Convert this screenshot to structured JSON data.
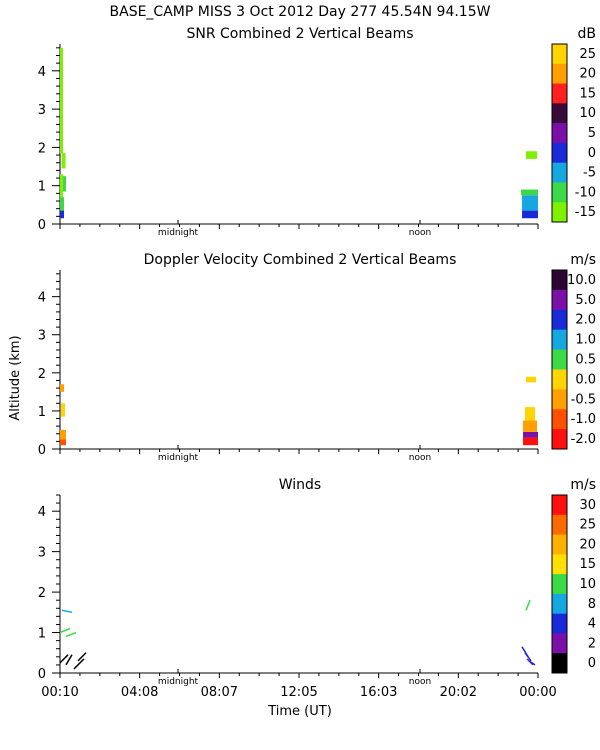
{
  "header": "BASE_CAMP MISS    3 Oct 2012 Day 277 45.54N   94.15W",
  "ylabel": "Altitude (km)",
  "xlabel": "Time (UT)",
  "x_ticks": [
    "00:10",
    "04:08",
    "08:07",
    "12:05",
    "16:03",
    "20:02",
    "00:00"
  ],
  "time_markers": [
    "midnight",
    "noon"
  ],
  "chart_data": [
    {
      "type": "heatmap",
      "title": "SNR Combined 2 Vertical Beams",
      "ylabel": "Altitude (km)",
      "xlabel": "Time (UT)",
      "ylim": [
        0,
        4.7
      ],
      "y_ticks": [
        "0",
        "1",
        "2",
        "3",
        "4"
      ],
      "colorbar": {
        "unit": "dB",
        "labels": [
          "25",
          "20",
          "15",
          "10",
          "5",
          "0",
          "-5",
          "-10",
          "-15"
        ],
        "colors": [
          "#ffd400",
          "#ff9f00",
          "#ff2020",
          "#3a0a3a",
          "#7a10a8",
          "#1a2ad8",
          "#16a6e0",
          "#3dd848",
          "#7ff000"
        ]
      },
      "blocks": [
        {
          "t0": 0.0,
          "t1": 0.2,
          "h0": 0.15,
          "h1": 0.35,
          "color": "#1a2ad8"
        },
        {
          "t0": 0.0,
          "t1": 0.2,
          "h0": 0.35,
          "h1": 0.7,
          "color": "#3dd848"
        },
        {
          "t0": 0.0,
          "t1": 0.15,
          "h0": 0.7,
          "h1": 1.3,
          "color": "#7ff000"
        },
        {
          "t0": 0.15,
          "t1": 0.3,
          "h0": 0.85,
          "h1": 1.25,
          "color": "#3dd848"
        },
        {
          "t0": 0.08,
          "t1": 0.28,
          "h0": 1.45,
          "h1": 1.85,
          "color": "#7ff000"
        },
        {
          "t0": 0.0,
          "t1": 0.15,
          "h0": 1.85,
          "h1": 4.6,
          "color": "#7ff000"
        },
        {
          "t0": 23.15,
          "t1": 23.95,
          "h0": 0.15,
          "h1": 0.35,
          "color": "#1a2ad8"
        },
        {
          "t0": 23.15,
          "t1": 23.95,
          "h0": 0.35,
          "h1": 0.75,
          "color": "#16a6e0"
        },
        {
          "t0": 23.1,
          "t1": 23.95,
          "h0": 0.75,
          "h1": 0.9,
          "color": "#3dd848"
        },
        {
          "t0": 23.35,
          "t1": 23.9,
          "h0": 1.7,
          "h1": 1.9,
          "color": "#7ff000"
        }
      ]
    },
    {
      "type": "heatmap",
      "title": "Doppler Velocity Combined 2 Vertical Beams",
      "ylabel": "Altitude (km)",
      "xlabel": "Time (UT)",
      "ylim": [
        0,
        4.7
      ],
      "y_ticks": [
        "0",
        "1",
        "2",
        "3",
        "4"
      ],
      "colorbar": {
        "unit": "m/s",
        "labels": [
          "10.0",
          "5.0",
          "2.0",
          "1.0",
          "0.5",
          "0.0",
          "-0.5",
          "-1.0",
          "-2.0"
        ],
        "colors": [
          "#2a0630",
          "#7a10a8",
          "#1a2ad8",
          "#16a6e0",
          "#3dd848",
          "#ffd400",
          "#ff9f00",
          "#ff5000",
          "#ff1010"
        ]
      },
      "blocks": [
        {
          "t0": 0.0,
          "t1": 0.3,
          "h0": 0.1,
          "h1": 0.25,
          "color": "#ff5000"
        },
        {
          "t0": 0.0,
          "t1": 0.3,
          "h0": 0.25,
          "h1": 0.5,
          "color": "#ff9f00"
        },
        {
          "t0": 0.05,
          "t1": 0.25,
          "h0": 0.85,
          "h1": 1.2,
          "color": "#ffd400"
        },
        {
          "t0": 0.0,
          "t1": 0.2,
          "h0": 1.5,
          "h1": 1.7,
          "color": "#ff9f00"
        },
        {
          "t0": 23.2,
          "t1": 23.95,
          "h0": 0.1,
          "h1": 0.3,
          "color": "#ff1010"
        },
        {
          "t0": 23.2,
          "t1": 23.95,
          "h0": 0.3,
          "h1": 0.45,
          "color": "#7a10a8"
        },
        {
          "t0": 23.2,
          "t1": 23.9,
          "h0": 0.45,
          "h1": 0.75,
          "color": "#ff9f00"
        },
        {
          "t0": 23.3,
          "t1": 23.8,
          "h0": 0.75,
          "h1": 1.1,
          "color": "#ffd400"
        },
        {
          "t0": 23.35,
          "t1": 23.85,
          "h0": 1.75,
          "h1": 1.9,
          "color": "#ffd400"
        }
      ]
    },
    {
      "type": "scatter",
      "title": "Winds",
      "ylabel": "Altitude (km)",
      "xlabel": "Time (UT)",
      "ylim": [
        0,
        4.4
      ],
      "y_ticks": [
        "0",
        "1",
        "2",
        "3",
        "4"
      ],
      "colorbar": {
        "unit": "m/s",
        "labels": [
          "30",
          "25",
          "20",
          "15",
          "10",
          "8",
          "4",
          "2",
          "0"
        ],
        "colors": [
          "#ff1010",
          "#ff6a00",
          "#ffb000",
          "#ffe000",
          "#3dd848",
          "#16a6e0",
          "#1a2ad8",
          "#7a10a8",
          "#000000"
        ]
      },
      "segments": [
        {
          "t": 0.0,
          "h": 1.0,
          "dt": 0.5,
          "dh": 0.1,
          "color": "#3dd848"
        },
        {
          "t": 0.3,
          "h": 0.9,
          "dt": 0.5,
          "dh": 0.1,
          "color": "#3dd848"
        },
        {
          "t": 0.1,
          "h": 1.55,
          "dt": 0.5,
          "dh": -0.05,
          "color": "#16a6e0"
        },
        {
          "t": 0.0,
          "h": 0.25,
          "dt": 0.4,
          "dh": 0.2,
          "color": "#000000"
        },
        {
          "t": 0.3,
          "h": 0.2,
          "dt": 0.3,
          "dh": 0.25,
          "color": "#000000"
        },
        {
          "t": 0.7,
          "h": 0.1,
          "dt": 0.5,
          "dh": 0.25,
          "color": "#000000"
        },
        {
          "t": 0.9,
          "h": 0.3,
          "dt": 0.4,
          "dh": 0.2,
          "color": "#000000"
        },
        {
          "t": 23.15,
          "h": 0.65,
          "dt": 0.3,
          "dh": -0.25,
          "color": "#1a2ad8"
        },
        {
          "t": 23.3,
          "h": 0.5,
          "dt": 0.3,
          "dh": -0.2,
          "color": "#1a2ad8"
        },
        {
          "t": 23.4,
          "h": 0.35,
          "dt": 0.3,
          "dh": -0.15,
          "color": "#7a10a8"
        },
        {
          "t": 23.5,
          "h": 0.3,
          "dt": 0.3,
          "dh": -0.1,
          "color": "#1a2ad8"
        },
        {
          "t": 23.35,
          "h": 1.55,
          "dt": 0.2,
          "dh": 0.25,
          "color": "#3dd848"
        }
      ]
    }
  ]
}
